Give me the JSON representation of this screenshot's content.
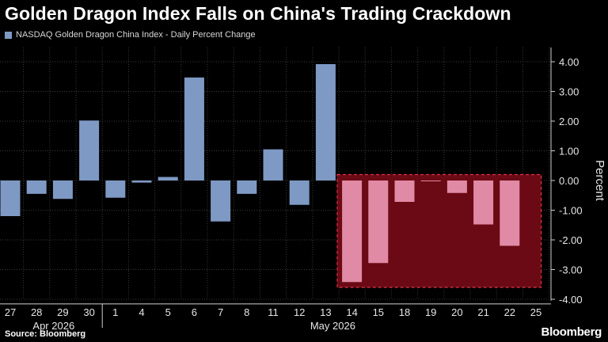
{
  "title": "Golden Dragon Index Falls on China's Trading Crackdown",
  "source": "Source: Bloomberg",
  "brand": "Bloomberg",
  "colors": {
    "bar": "#7e99c4",
    "highlight_bar": "#e08aa6",
    "highlight_fill": "#6b0a14",
    "highlight_border": "#e0304a",
    "grid": "#3a3a3a"
  },
  "chart_data": {
    "type": "bar",
    "title": "Golden Dragon Index Falls on China's Trading Crackdown",
    "legend": "NASDAQ Golden Dragon China Index - Daily Percent Change",
    "legend_placement": "top-left",
    "ylabel": "Percent",
    "ylim": [
      -4,
      4.5
    ],
    "yticks": [
      "4.00",
      "3.00",
      "2.00",
      "1.00",
      "0.00",
      "-1.00",
      "-2.00",
      "-3.00",
      "-4.00"
    ],
    "grid": true,
    "categories": [
      "27",
      "28",
      "29",
      "30",
      "1",
      "4",
      "5",
      "6",
      "7",
      "8",
      "11",
      "12",
      "13",
      "14",
      "15",
      "18",
      "19",
      "20",
      "21",
      "22",
      "25"
    ],
    "values": [
      -1.2,
      -0.45,
      -0.62,
      2.02,
      -0.58,
      -0.07,
      0.12,
      3.47,
      -1.38,
      -0.45,
      1.05,
      -0.82,
      3.92,
      -3.42,
      -2.78,
      -0.72,
      -0.02,
      -0.42,
      -1.48,
      -2.2,
      null
    ],
    "month_labels": [
      {
        "label": "Apr 2026",
        "first": 0,
        "last": 3
      },
      {
        "label": "May 2026",
        "first": 4,
        "last": 20
      }
    ],
    "highlight": {
      "first": 13,
      "last": 20,
      "ymin": -3.6,
      "ymax": 0.2
    }
  }
}
